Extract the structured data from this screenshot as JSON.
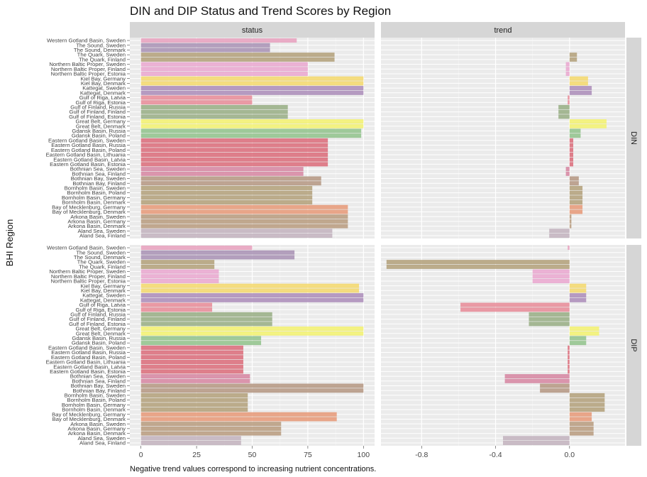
{
  "chart_data": {
    "type": "bar",
    "title": "DIN and DIP Status and Trend Scores by Region",
    "ylabel": "BHI Region",
    "caption": "Negative trend values correspond to increasing nutrient concentrations.",
    "columns": [
      "status",
      "trend"
    ],
    "rows": [
      "DIN",
      "DIP"
    ],
    "status_ticks": [
      "0",
      "25",
      "50",
      "75",
      "100"
    ],
    "status_tick_values": [
      0,
      25,
      50,
      75,
      100
    ],
    "trend_ticks": [
      "-0.8",
      "-0.4",
      "0.0"
    ],
    "trend_tick_values": [
      -0.8,
      -0.4,
      0.0
    ],
    "status_xlim": [
      -5,
      105
    ],
    "trend_xlim": [
      -1.02,
      0.3
    ],
    "regions": [
      "Western Gotland Basin, Sweden",
      "The Sound, Sweden",
      "The Sound, Denmark",
      "The Quark, Sweden",
      "The Quark, Finland",
      "Northern Baltic Proper, Sweden",
      "Northern Baltic Proper, Finland",
      "Northern Baltic Proper, Estonia",
      "Kiel Bay, Germany",
      "Kiel Bay, Denmark",
      "Kattegat, Sweden",
      "Kattegat, Denmark",
      "Gulf of Riga, Latvia",
      "Gulf of Riga, Estonia",
      "Gulf of Finland, Russia",
      "Gulf of Finland, Finland",
      "Gulf of Finland, Estonia",
      "Great Belt, Germany",
      "Great Belt, Denmark",
      "Gdansk Basin, Russia",
      "Gdansk Basin, Poland",
      "Eastern Gotland Basin, Sweden",
      "Eastern Gotland Basin, Russia",
      "Eastern Gotland Basin, Poland",
      "Eastern Gotland Basin, Lithuania",
      "Eastern Gotland Basin, Latvia",
      "Eastern Gotland Basin, Estonia",
      "Bothnian Sea, Sweden",
      "Bothnian Sea, Finland",
      "Bothnian Bay, Sweden",
      "Bothnian Bay, Finland",
      "Bornholm Basin, Sweden",
      "Bornholm Basin, Poland",
      "Bornholm Basin, Germany",
      "Bornholm Basin, Denmark",
      "Bay of Mecklenburg, Germany",
      "Bay of Mecklenburg, Denmark",
      "Arkona Basin, Sweden",
      "Arkona Basin, Germany",
      "Arkona Basin, Denmark",
      "Aland Sea, Sweden",
      "Aland Sea, Finland"
    ],
    "basin_colors": [
      "#e8a0bd",
      "#a78fb3",
      "#a78fb3",
      "#b19f78",
      "#b19f78",
      "#eaa6cf",
      "#eaa6cf",
      "#eaa6cf",
      "#f5d86a",
      "#f5d86a",
      "#aa8bb8",
      "#aa8bb8",
      "#e88a97",
      "#e88a97",
      "#97ad83",
      "#97ad83",
      "#97ad83",
      "#f3f26d",
      "#f3f26d",
      "#8fc28a",
      "#8fc28a",
      "#db6a78",
      "#db6a78",
      "#db6a78",
      "#db6a78",
      "#db6a78",
      "#db6a78",
      "#d684a0",
      "#d684a0",
      "#b49580",
      "#b49580",
      "#b19f78",
      "#b19f78",
      "#b19f78",
      "#b19f78",
      "#e69876",
      "#e69876",
      "#b79a7d",
      "#b79a7d",
      "#b79a7d",
      "#c2b1bd",
      "#c2b1bd"
    ],
    "din_status": [
      70,
      58,
      58,
      87,
      87,
      75,
      75,
      75,
      100,
      100,
      100,
      100,
      50,
      50,
      66,
      66,
      66,
      100,
      100,
      99,
      99,
      84,
      84,
      84,
      84,
      84,
      84,
      73,
      73,
      81,
      81,
      77,
      77,
      77,
      77,
      93,
      93,
      93,
      93,
      93,
      86,
      86
    ],
    "din_trend": [
      0.0,
      0,
      0,
      0.04,
      0.04,
      -0.02,
      -0.02,
      -0.02,
      0.1,
      0.1,
      0.12,
      0.12,
      -0.01,
      -0.01,
      -0.06,
      -0.06,
      -0.06,
      0.2,
      0.2,
      0.06,
      0.06,
      0.02,
      0.02,
      0.02,
      0.02,
      0.02,
      0.02,
      -0.02,
      -0.02,
      0.05,
      0.05,
      0.07,
      0.07,
      0.07,
      0.07,
      0.07,
      0.07,
      0.01,
      0.01,
      0.01,
      -0.11,
      -0.11
    ],
    "dip_status": [
      50,
      69,
      69,
      33,
      33,
      35,
      35,
      35,
      98,
      98,
      100,
      100,
      32,
      32,
      59,
      59,
      59,
      100,
      100,
      54,
      54,
      46,
      46,
      46,
      46,
      46,
      46,
      49,
      49,
      100,
      100,
      48,
      48,
      48,
      48,
      88,
      88,
      63,
      63,
      63,
      45,
      45
    ],
    "dip_trend": [
      -0.01,
      0,
      0,
      -0.99,
      -0.99,
      -0.2,
      -0.2,
      -0.2,
      0.09,
      0.09,
      0.09,
      0.09,
      -0.59,
      -0.59,
      -0.22,
      -0.22,
      -0.22,
      0.16,
      0.16,
      0.09,
      0.09,
      -0.01,
      -0.01,
      -0.01,
      -0.01,
      -0.01,
      -0.01,
      -0.35,
      -0.35,
      -0.16,
      -0.16,
      0.19,
      0.19,
      0.19,
      0.19,
      0.12,
      0.12,
      0.13,
      0.13,
      0.13,
      -0.36,
      -0.36
    ],
    "grid": true
  }
}
